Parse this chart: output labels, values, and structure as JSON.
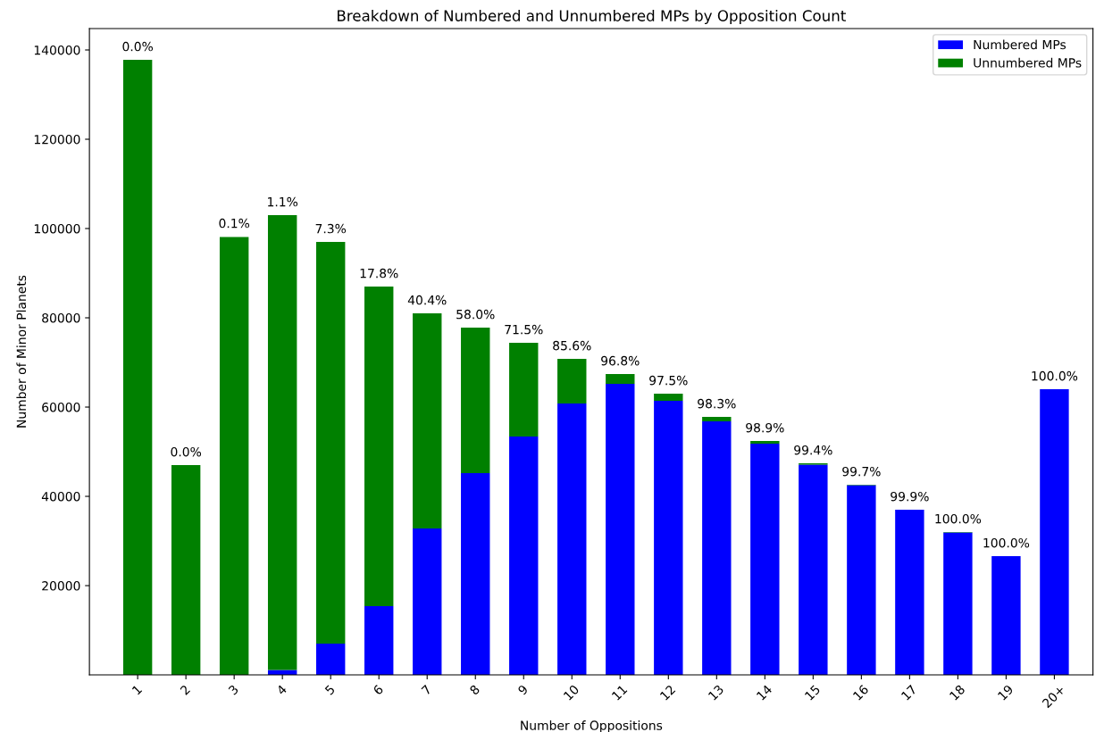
{
  "chart_data": {
    "type": "bar",
    "title": "Breakdown of Numbered and Unnumbered MPs by Opposition Count",
    "xlabel": "Number of Oppositions",
    "ylabel": "Number of Minor Planets",
    "categories": [
      "1",
      "2",
      "3",
      "4",
      "5",
      "6",
      "7",
      "8",
      "9",
      "10",
      "11",
      "12",
      "13",
      "14",
      "15",
      "16",
      "17",
      "18",
      "19",
      "20+"
    ],
    "stacked": true,
    "series": [
      {
        "name": "Numbered MPs",
        "color": "#0000ff",
        "values": [
          0,
          0,
          null,
          1100,
          7000,
          15400,
          32800,
          45200,
          53400,
          60800,
          65200,
          61400,
          56800,
          51800,
          47100,
          42500,
          37000,
          31900,
          26600,
          64000
        ]
      },
      {
        "name": "Unnumbered MPs",
        "color": "#008000",
        "values": [
          137800,
          47000,
          98100,
          101900,
          90000,
          71600,
          48200,
          32600,
          21000,
          10000,
          2200,
          1600,
          1000,
          600,
          300,
          100,
          0,
          100,
          0,
          0
        ]
      }
    ],
    "annotations": [
      {
        "text": "0.0%",
        "x": "1",
        "y": 137800
      },
      {
        "text": "0.0%",
        "x": "2",
        "y": 47000
      },
      {
        "text": "0.1%",
        "x": "3",
        "y": 98200
      },
      {
        "text": "1.1%",
        "x": "4",
        "y": 103000
      },
      {
        "text": "7.3%",
        "x": "5",
        "y": 97000
      },
      {
        "text": "17.8%",
        "x": "6",
        "y": 87000
      },
      {
        "text": "40.4%",
        "x": "7",
        "y": 81000
      },
      {
        "text": "58.0%",
        "x": "8",
        "y": 77800
      },
      {
        "text": "71.5%",
        "x": "9",
        "y": 74400
      },
      {
        "text": "85.6%",
        "x": "10",
        "y": 70800
      },
      {
        "text": "96.8%",
        "x": "11",
        "y": 67400
      },
      {
        "text": "97.5%",
        "x": "12",
        "y": 63000
      },
      {
        "text": "98.3%",
        "x": "13",
        "y": 57800
      },
      {
        "text": "98.9%",
        "x": "14",
        "y": 52400
      },
      {
        "text": "99.4%",
        "x": "15",
        "y": 47400
      },
      {
        "text": "99.7%",
        "x": "16",
        "y": 42600
      },
      {
        "text": "99.9%",
        "x": "17",
        "y": 37000
      },
      {
        "text": "100.0%",
        "x": "18",
        "y": 32000
      },
      {
        "text": "100.0%",
        "x": "19",
        "y": 26600
      },
      {
        "text": "100.0%",
        "x": "20+",
        "y": 64000
      }
    ],
    "ylim": [
      0,
      144800
    ],
    "yticks": [
      20000,
      40000,
      60000,
      80000,
      100000,
      120000,
      140000
    ],
    "legend": "top right",
    "grid": false
  }
}
